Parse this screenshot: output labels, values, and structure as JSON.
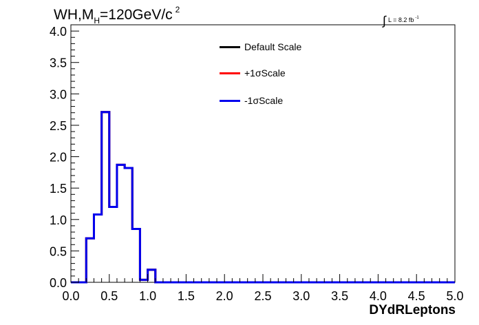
{
  "annotation": {
    "title_main": "WH,M",
    "title_sub": "H",
    "title_rest": "=120GeV/c",
    "title_sup": "2",
    "lumi_integral": "∫",
    "lumi_text": "L = 8.2 fb",
    "lumi_sup": "-1"
  },
  "chart_data": {
    "type": "line",
    "style": "step-histogram",
    "xlabel": "DYdRLeptons",
    "ylabel": "",
    "xlim": [
      0,
      5
    ],
    "ylim": [
      0,
      4.1
    ],
    "grid": false,
    "legend_position": "top-center",
    "x_ticks": [
      "0.0",
      "0.5",
      "1.0",
      "1.5",
      "2.0",
      "2.5",
      "3.0",
      "3.5",
      "4.0",
      "4.5",
      "5.0"
    ],
    "y_ticks": [
      "0.0",
      "0.5",
      "1.0",
      "1.5",
      "2.0",
      "2.5",
      "3.0",
      "3.5",
      "4.0"
    ],
    "bin_edges": [
      0.0,
      0.1,
      0.2,
      0.3,
      0.4,
      0.5,
      0.6,
      0.7,
      0.8,
      0.9,
      1.0,
      1.1,
      1.2,
      1.3,
      1.4,
      1.5,
      1.6,
      1.7,
      1.8,
      1.9,
      2.0,
      2.1,
      2.2,
      2.3,
      2.4,
      2.5,
      2.6,
      2.7,
      2.8,
      2.9,
      3.0,
      3.1,
      3.2,
      3.3,
      3.4,
      3.5,
      3.6,
      3.7,
      3.8,
      3.9,
      4.0,
      4.1,
      4.2,
      4.3,
      4.4,
      4.5,
      4.6,
      4.7,
      4.8,
      4.9,
      5.0
    ],
    "series": [
      {
        "name": "Default Scale",
        "color": "#000000",
        "values": [
          0,
          0,
          0.7,
          1.08,
          2.71,
          1.2,
          1.87,
          1.82,
          0.85,
          0.04,
          0.2,
          0,
          0,
          0,
          0,
          0,
          0,
          0,
          0,
          0,
          0,
          0,
          0,
          0,
          0,
          0,
          0,
          0,
          0,
          0,
          0,
          0,
          0,
          0,
          0,
          0,
          0,
          0,
          0,
          0,
          0,
          0,
          0,
          0,
          0,
          0,
          0,
          0,
          0,
          0
        ]
      },
      {
        "name": "+1σScale",
        "color": "#ff0000",
        "values": [
          0,
          0,
          0.7,
          1.08,
          2.71,
          1.2,
          1.87,
          1.82,
          0.85,
          0.04,
          0.2,
          0,
          0,
          0,
          0,
          0,
          0,
          0,
          0,
          0,
          0,
          0,
          0,
          0,
          0,
          0,
          0,
          0,
          0,
          0,
          0,
          0,
          0,
          0,
          0,
          0,
          0,
          0,
          0,
          0,
          0,
          0,
          0,
          0,
          0,
          0,
          0,
          0,
          0,
          0
        ]
      },
      {
        "name": "-1σScale",
        "color": "#0000ee",
        "values": [
          0,
          0,
          0.7,
          1.08,
          2.71,
          1.2,
          1.87,
          1.82,
          0.85,
          0.04,
          0.2,
          0,
          0,
          0,
          0,
          0,
          0,
          0,
          0,
          0,
          0,
          0,
          0,
          0,
          0,
          0,
          0,
          0,
          0,
          0,
          0,
          0,
          0,
          0,
          0,
          0,
          0,
          0,
          0,
          0,
          0,
          0,
          0,
          0,
          0,
          0,
          0,
          0,
          0,
          0
        ]
      }
    ]
  }
}
